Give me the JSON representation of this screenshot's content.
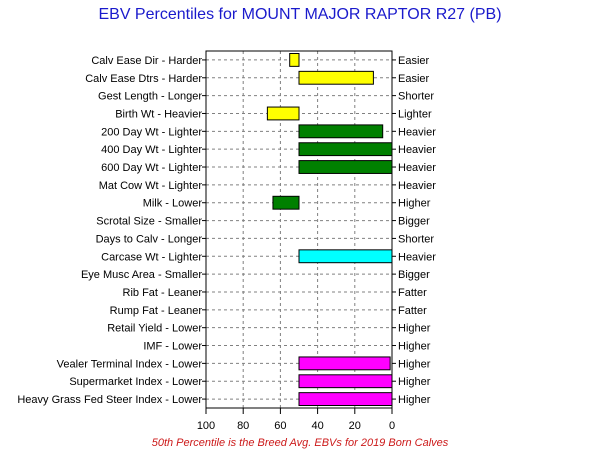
{
  "title": "EBV Percentiles for MOUNT MAJOR RAPTOR R27 (PB)",
  "footnote": "50th Percentile is the Breed Avg. EBVs for 2019 Born Calves",
  "colors": {
    "title": "#1a1acc",
    "footnote": "#cc1a1a",
    "yellow": "#ffff00",
    "green": "#008000",
    "cyan": "#00ffff",
    "magenta": "#ff00ff"
  },
  "chart_data": {
    "type": "bar",
    "orientation": "horizontal-range",
    "x_axis": {
      "ticks": [
        "100",
        "80",
        "60",
        "40",
        "20",
        "0"
      ],
      "range": [
        100,
        0
      ],
      "reversed": true
    },
    "grid": true,
    "rows": [
      {
        "left": "Calv Ease Dir - Harder",
        "right": "Easier",
        "bar": [
          55,
          50
        ],
        "color": "yellow"
      },
      {
        "left": "Calv Ease Dtrs - Harder",
        "right": "Easier",
        "bar": [
          50,
          10
        ],
        "color": "yellow"
      },
      {
        "left": "Gest Length - Longer",
        "right": "Shorter",
        "bar": null
      },
      {
        "left": "Birth Wt - Heavier",
        "right": "Lighter",
        "bar": [
          67,
          50
        ],
        "color": "yellow"
      },
      {
        "left": "200 Day Wt - Lighter",
        "right": "Heavier",
        "bar": [
          50,
          5
        ],
        "color": "green"
      },
      {
        "left": "400 Day Wt - Lighter",
        "right": "Heavier",
        "bar": [
          50,
          0
        ],
        "color": "green"
      },
      {
        "left": "600 Day Wt - Lighter",
        "right": "Heavier",
        "bar": [
          50,
          0
        ],
        "color": "green"
      },
      {
        "left": "Mat Cow Wt - Lighter",
        "right": "Heavier",
        "bar": null
      },
      {
        "left": "Milk - Lower",
        "right": "Higher",
        "bar": [
          64,
          50
        ],
        "color": "green"
      },
      {
        "left": "Scrotal Size - Smaller",
        "right": "Bigger",
        "bar": null
      },
      {
        "left": "Days to Calv - Longer",
        "right": "Shorter",
        "bar": null
      },
      {
        "left": "Carcase Wt - Lighter",
        "right": "Heavier",
        "bar": [
          50,
          0
        ],
        "color": "cyan"
      },
      {
        "left": "Eye Musc Area - Smaller",
        "right": "Bigger",
        "bar": null
      },
      {
        "left": "Rib Fat - Leaner",
        "right": "Fatter",
        "bar": null
      },
      {
        "left": "Rump Fat - Leaner",
        "right": "Fatter",
        "bar": null
      },
      {
        "left": "Retail Yield - Lower",
        "right": "Higher",
        "bar": null
      },
      {
        "left": "IMF - Lower",
        "right": "Higher",
        "bar": null
      },
      {
        "left": "Vealer Terminal Index - Lower",
        "right": "Higher",
        "bar": [
          50,
          1
        ],
        "color": "magenta"
      },
      {
        "left": "Supermarket Index - Lower",
        "right": "Higher",
        "bar": [
          50,
          0
        ],
        "color": "magenta"
      },
      {
        "left": "Heavy Grass Fed Steer Index - Lower",
        "right": "Higher",
        "bar": [
          50,
          0
        ],
        "color": "magenta"
      }
    ]
  }
}
